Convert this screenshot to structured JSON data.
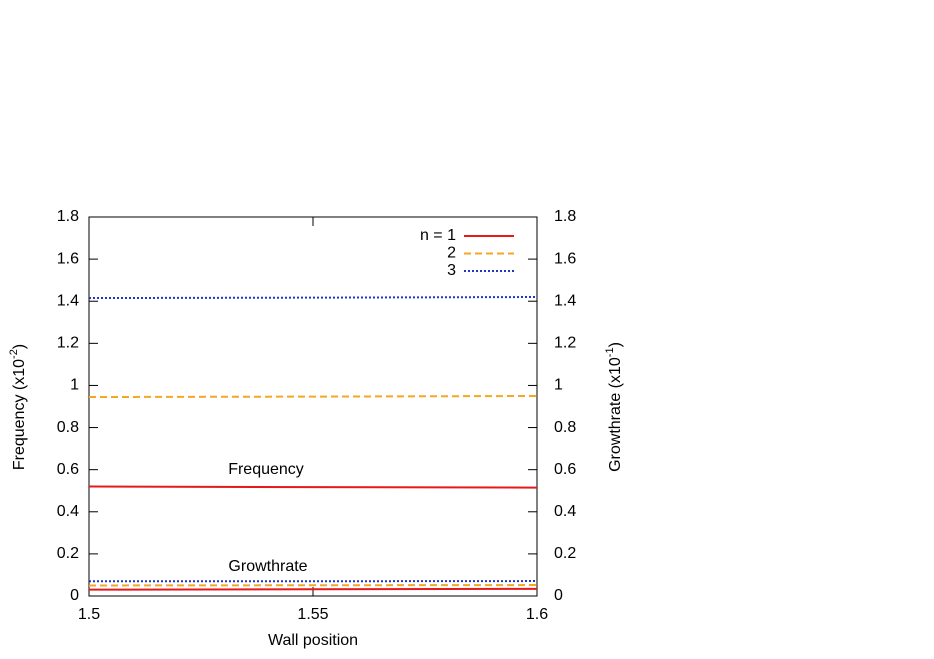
{
  "chart_data": {
    "type": "line",
    "x_label": "Wall position",
    "y_label": [
      "Frequency (x10",
      "-2",
      ")"
    ],
    "y2_label": [
      "Growthrate (x10",
      "-1",
      ")"
    ],
    "annotations": [
      "Frequency",
      "Growthrate"
    ],
    "legend_title": "n = ",
    "legend": "upper right",
    "x": [
      1.5,
      1.55,
      1.6
    ],
    "series": [
      {
        "name": "1",
        "color": "#e41a1c",
        "dash": "solid",
        "values": [
          0.52,
          0.517,
          0.515
        ]
      },
      {
        "name": "2",
        "color": "#f5a623",
        "dash": "dashed",
        "values": [
          0.945,
          0.947,
          0.95
        ]
      },
      {
        "name": "3",
        "color": "#2233cc",
        "dash": "dotted",
        "values": [
          1.415,
          1.417,
          1.42
        ]
      },
      {
        "color": "#e41a1c",
        "dash": "solid",
        "axis": "y2",
        "values": [
          0.03,
          0.032,
          0.034
        ]
      },
      {
        "color": "#f5a623",
        "dash": "dashed",
        "axis": "y2",
        "values": [
          0.05,
          0.051,
          0.052
        ]
      },
      {
        "color": "#2233cc",
        "dash": "dotted",
        "axis": "y2",
        "values": [
          0.07,
          0.07,
          0.071
        ]
      }
    ],
    "xlim": [
      1.5,
      1.6
    ],
    "xticks": [
      1.5,
      1.55,
      1.6
    ],
    "ylim": [
      0,
      1.8
    ],
    "yticks": [
      0,
      0.2,
      0.4,
      0.6,
      0.8,
      1,
      1.2,
      1.4,
      1.6,
      1.8
    ],
    "y2lim": [
      0,
      1.8
    ],
    "y2ticks": [
      0,
      0.2,
      0.4,
      0.6,
      0.8,
      1,
      1.2,
      1.4,
      1.6,
      1.8
    ]
  }
}
